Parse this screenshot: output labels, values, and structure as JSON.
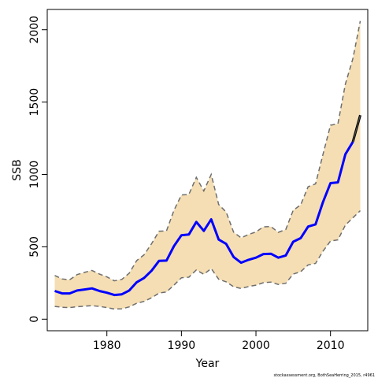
{
  "chart_data": {
    "type": "line",
    "xlabel": "Year",
    "ylabel": "SSB",
    "xlim": [
      1972,
      2015
    ],
    "ylim": [
      -80,
      2140
    ],
    "x_ticks": [
      1980,
      1990,
      2000,
      2010
    ],
    "y_ticks": [
      0,
      500,
      1000,
      1500,
      2000
    ],
    "grid": false,
    "colors": {
      "band_fill": "#F5DEB3",
      "band_edge": "#6e6e6e",
      "estimate": "#0000FF",
      "forecast": "#000000"
    },
    "x": [
      1973,
      1974,
      1975,
      1976,
      1977,
      1978,
      1979,
      1980,
      1981,
      1982,
      1983,
      1984,
      1985,
      1986,
      1987,
      1988,
      1989,
      1990,
      1991,
      1992,
      1993,
      1994,
      1995,
      1996,
      1997,
      1998,
      1999,
      2000,
      2001,
      2002,
      2003,
      2004,
      2005,
      2006,
      2007,
      2008,
      2009,
      2010,
      2011,
      2012,
      2013
    ],
    "series": [
      {
        "values": [
          195,
          178,
          178,
          198,
          205,
          213,
          195,
          183,
          167,
          172,
          198,
          255,
          285,
          335,
          403,
          405,
          505,
          580,
          585,
          672,
          610,
          690,
          550,
          520,
          430,
          390,
          410,
          425,
          450,
          452,
          425,
          440,
          535,
          560,
          640,
          655,
          810,
          940,
          945,
          1140,
          1225
        ]
      },
      {
        "values": [
          88,
          82,
          80,
          86,
          90,
          93,
          88,
          80,
          70,
          72,
          85,
          110,
          123,
          148,
          180,
          188,
          235,
          286,
          290,
          340,
          310,
          350,
          276,
          258,
          224,
          212,
          225,
          235,
          252,
          256,
          240,
          248,
          312,
          328,
          375,
          385,
          470,
          540,
          548,
          650,
          700
        ]
      },
      {
        "values": [
          302,
          278,
          272,
          308,
          323,
          337,
          312,
          292,
          265,
          275,
          318,
          405,
          445,
          522,
          608,
          610,
          752,
          858,
          862,
          980,
          886,
          1000,
          792,
          740,
          602,
          562,
          585,
          603,
          638,
          640,
          600,
          620,
          752,
          790,
          915,
          935,
          1140,
          1340,
          1350,
          1625,
          1800
        ]
      },
      {
        "x": [
          2013,
          2014
        ],
        "values": [
          1225,
          1410
        ]
      },
      {
        "x": [
          2013,
          2014
        ],
        "values": [
          700,
          750
        ]
      },
      {
        "x": [
          2013,
          2014
        ],
        "values": [
          1800,
          2060
        ]
      }
    ]
  },
  "footnote": "stockassessment.org, BothSeaHerring_2015, r4961"
}
